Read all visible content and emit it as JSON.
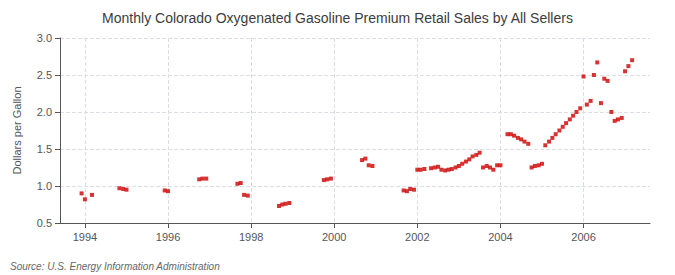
{
  "chart_data": {
    "type": "scatter",
    "title": "Monthly Colorado Oxygenated Gasoline Premium Retail Sales by All Sellers",
    "ylabel": "Dollars per Gallon",
    "annotations": [
      "Source: U.S. Energy Information Administration"
    ],
    "color": "#cc0000",
    "marker": "square",
    "grid": true,
    "xlim": [
      1993.4,
      2007.6
    ],
    "xticks": [
      1994,
      1996,
      1998,
      2000,
      2002,
      2004,
      2006
    ],
    "ylim": [
      0.5,
      3.0
    ],
    "yticks": [
      0.5,
      {
        "value": 1.0,
        "label": "1.0"
      },
      1.5,
      {
        "value": 2.0,
        "label": "2.0"
      },
      2.5,
      {
        "value": 3.0,
        "label": "3.0"
      }
    ],
    "x": [
      1993.92,
      1994.0,
      1994.17,
      1994.83,
      1994.92,
      1995.0,
      1995.92,
      1996.0,
      1996.75,
      1996.83,
      1996.92,
      1997.67,
      1997.75,
      1997.83,
      1997.92,
      1998.67,
      1998.75,
      1998.83,
      1998.92,
      1999.75,
      1999.83,
      1999.92,
      2000.67,
      2000.75,
      2000.83,
      2000.92,
      2001.67,
      2001.75,
      2001.83,
      2001.92,
      2002.0,
      2002.08,
      2002.17,
      2002.33,
      2002.42,
      2002.5,
      2002.58,
      2002.67,
      2002.75,
      2002.83,
      2002.92,
      2003.0,
      2003.08,
      2003.17,
      2003.25,
      2003.33,
      2003.42,
      2003.5,
      2003.58,
      2003.67,
      2003.75,
      2003.83,
      2003.92,
      2004.0,
      2004.17,
      2004.25,
      2004.33,
      2004.42,
      2004.5,
      2004.58,
      2004.67,
      2004.75,
      2004.83,
      2004.92,
      2005.0,
      2005.08,
      2005.17,
      2005.25,
      2005.33,
      2005.42,
      2005.5,
      2005.58,
      2005.67,
      2005.75,
      2005.83,
      2005.92,
      2006.0,
      2006.08,
      2006.17,
      2006.25,
      2006.33,
      2006.42,
      2006.5,
      2006.58,
      2006.67,
      2006.75,
      2006.83,
      2006.92,
      2007.0,
      2007.08,
      2007.17
    ],
    "values": [
      0.9,
      0.82,
      0.88,
      0.97,
      0.96,
      0.95,
      0.94,
      0.93,
      1.09,
      1.1,
      1.1,
      1.03,
      1.04,
      0.88,
      0.87,
      0.73,
      0.75,
      0.76,
      0.77,
      1.08,
      1.09,
      1.1,
      1.35,
      1.37,
      1.28,
      1.27,
      0.94,
      0.93,
      0.96,
      0.95,
      1.22,
      1.22,
      1.23,
      1.24,
      1.25,
      1.26,
      1.22,
      1.21,
      1.22,
      1.23,
      1.25,
      1.27,
      1.3,
      1.33,
      1.36,
      1.4,
      1.42,
      1.45,
      1.25,
      1.27,
      1.25,
      1.22,
      1.28,
      1.28,
      1.7,
      1.7,
      1.68,
      1.65,
      1.63,
      1.6,
      1.57,
      1.25,
      1.27,
      1.28,
      1.3,
      1.55,
      1.6,
      1.65,
      1.7,
      1.75,
      1.8,
      1.85,
      1.9,
      1.95,
      2.0,
      2.05,
      2.48,
      2.1,
      2.15,
      2.5,
      2.67,
      2.12,
      2.45,
      2.42,
      2.0,
      1.88,
      1.9,
      1.92,
      2.55,
      2.62,
      2.7
    ]
  }
}
